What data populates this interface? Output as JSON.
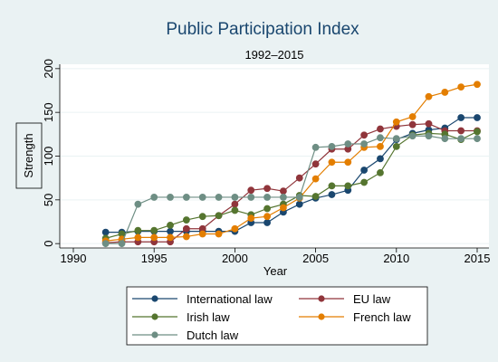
{
  "chart_data": {
    "type": "line",
    "title": "Public Participation Index",
    "subtitle": "1992–2015",
    "xlabel": "Year",
    "ylabel": "Strength",
    "xlim": [
      1990,
      2015
    ],
    "ylim": [
      -5,
      205
    ],
    "xticks": [
      1990,
      1995,
      2000,
      2005,
      2010,
      2015
    ],
    "yticks": [
      0,
      50,
      100,
      150,
      200
    ],
    "grid": true,
    "legend_position": "bottom",
    "x": [
      1992,
      1993,
      1994,
      1995,
      1996,
      1997,
      1998,
      1999,
      2000,
      2001,
      2002,
      2003,
      2004,
      2005,
      2006,
      2007,
      2008,
      2009,
      2010,
      2011,
      2012,
      2013,
      2014,
      2015
    ],
    "series": [
      {
        "name": "International law",
        "color": "#1a476f",
        "values": [
          13,
          13,
          14,
          14,
          14,
          14,
          14,
          14,
          14,
          24,
          24,
          36,
          45,
          52,
          56,
          61,
          84,
          97,
          119,
          126,
          130,
          132,
          144,
          144
        ]
      },
      {
        "name": "EU law",
        "color": "#90353b",
        "values": [
          1,
          2,
          2,
          2,
          2,
          17,
          17,
          32,
          45,
          61,
          63,
          60,
          75,
          91,
          108,
          108,
          124,
          131,
          134,
          136,
          137,
          129,
          129,
          129
        ]
      },
      {
        "name": "Irish law",
        "color": "#55752f",
        "values": [
          6,
          11,
          15,
          15,
          21,
          27,
          31,
          32,
          38,
          33,
          40,
          45,
          55,
          54,
          66,
          66,
          70,
          81,
          111,
          124,
          126,
          125,
          119,
          128
        ]
      },
      {
        "name": "French law",
        "color": "#e37e00",
        "values": [
          3,
          5,
          7,
          7,
          7,
          8,
          11,
          11,
          17,
          29,
          31,
          41,
          52,
          74,
          93,
          93,
          110,
          111,
          139,
          145,
          168,
          173,
          179,
          182
        ]
      },
      {
        "name": "Dutch law",
        "color": "#6e8e84",
        "values": [
          0,
          0,
          45,
          53,
          53,
          53,
          53,
          53,
          53,
          53,
          53,
          53,
          53,
          110,
          111,
          114,
          114,
          121,
          120,
          123,
          123,
          120,
          120,
          120
        ]
      }
    ]
  }
}
